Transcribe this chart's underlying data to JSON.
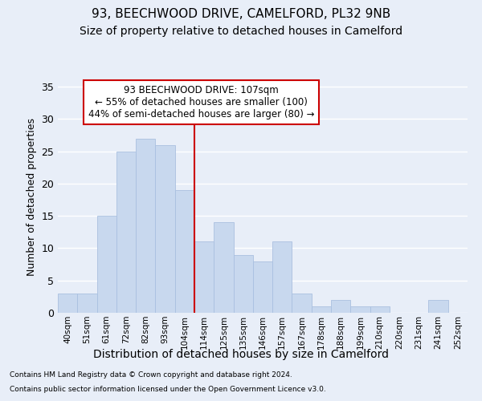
{
  "title": "93, BEECHWOOD DRIVE, CAMELFORD, PL32 9NB",
  "subtitle": "Size of property relative to detached houses in Camelford",
  "xlabel": "Distribution of detached houses by size in Camelford",
  "ylabel": "Number of detached properties",
  "categories": [
    "40sqm",
    "51sqm",
    "61sqm",
    "72sqm",
    "82sqm",
    "93sqm",
    "104sqm",
    "114sqm",
    "125sqm",
    "135sqm",
    "146sqm",
    "157sqm",
    "167sqm",
    "178sqm",
    "188sqm",
    "199sqm",
    "210sqm",
    "220sqm",
    "231sqm",
    "241sqm",
    "252sqm"
  ],
  "values": [
    3,
    3,
    15,
    25,
    27,
    26,
    19,
    11,
    14,
    9,
    8,
    11,
    3,
    1,
    2,
    1,
    1,
    0,
    0,
    2,
    0
  ],
  "bar_color": "#c8d8ee",
  "bar_edge_color": "#aac0e0",
  "vline_x": 6.5,
  "vline_color": "#cc0000",
  "ylim": [
    0,
    36
  ],
  "yticks": [
    0,
    5,
    10,
    15,
    20,
    25,
    30,
    35
  ],
  "annotation_text": "93 BEECHWOOD DRIVE: 107sqm\n← 55% of detached houses are smaller (100)\n44% of semi-detached houses are larger (80) →",
  "annotation_box_color": "#cc0000",
  "footnote1": "Contains HM Land Registry data © Crown copyright and database right 2024.",
  "footnote2": "Contains public sector information licensed under the Open Government Licence v3.0.",
  "background_color": "#e8eef8",
  "plot_bg_color": "#e8eef8",
  "grid_color": "#ffffff",
  "title_fontsize": 11,
  "subtitle_fontsize": 10,
  "xlabel_fontsize": 10,
  "ylabel_fontsize": 9
}
